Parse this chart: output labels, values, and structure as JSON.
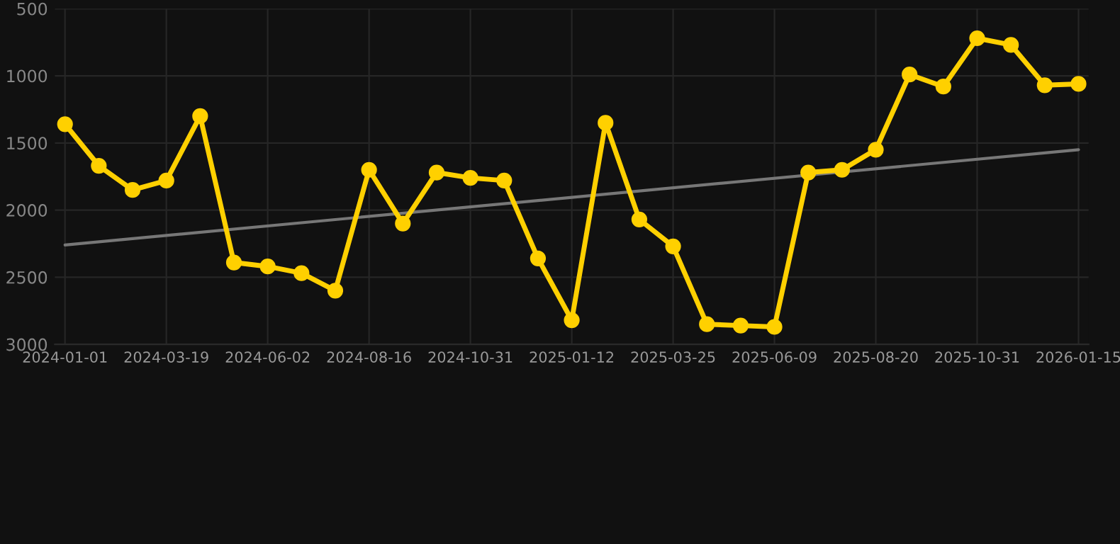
{
  "chart_data": {
    "type": "line",
    "categories": [
      "2024-01-01",
      null,
      null,
      "2024-03-19",
      null,
      null,
      "2024-06-02",
      null,
      null,
      "2024-08-16",
      null,
      null,
      "2024-10-31",
      null,
      null,
      "2025-01-12",
      null,
      null,
      "2025-03-25",
      null,
      null,
      "2025-06-09",
      null,
      null,
      "2025-08-20",
      null,
      null,
      "2025-10-31",
      null,
      null,
      "2026-01-15"
    ],
    "series": [
      {
        "color": "#ffd000",
        "marker": "circle",
        "values": [
          1360,
          1670,
          1850,
          1780,
          1300,
          2390,
          2420,
          2470,
          2600,
          1700,
          2100,
          1720,
          1760,
          1780,
          2360,
          2820,
          1350,
          2070,
          2270,
          2850,
          2860,
          2870,
          1720,
          1700,
          1550,
          990,
          1080,
          720,
          770,
          1070,
          1060
        ]
      },
      {
        "color": "#777777",
        "marker": "none",
        "values": [
          2260,
          null,
          null,
          null,
          null,
          null,
          null,
          null,
          null,
          null,
          null,
          null,
          null,
          null,
          null,
          null,
          null,
          null,
          null,
          null,
          null,
          null,
          null,
          null,
          null,
          null,
          null,
          null,
          null,
          null,
          1550
        ]
      }
    ],
    "ylim": [
      3000,
      500
    ],
    "yticks": [
      500,
      1000,
      1500,
      2000,
      2500,
      3000
    ],
    "grid": true
  }
}
